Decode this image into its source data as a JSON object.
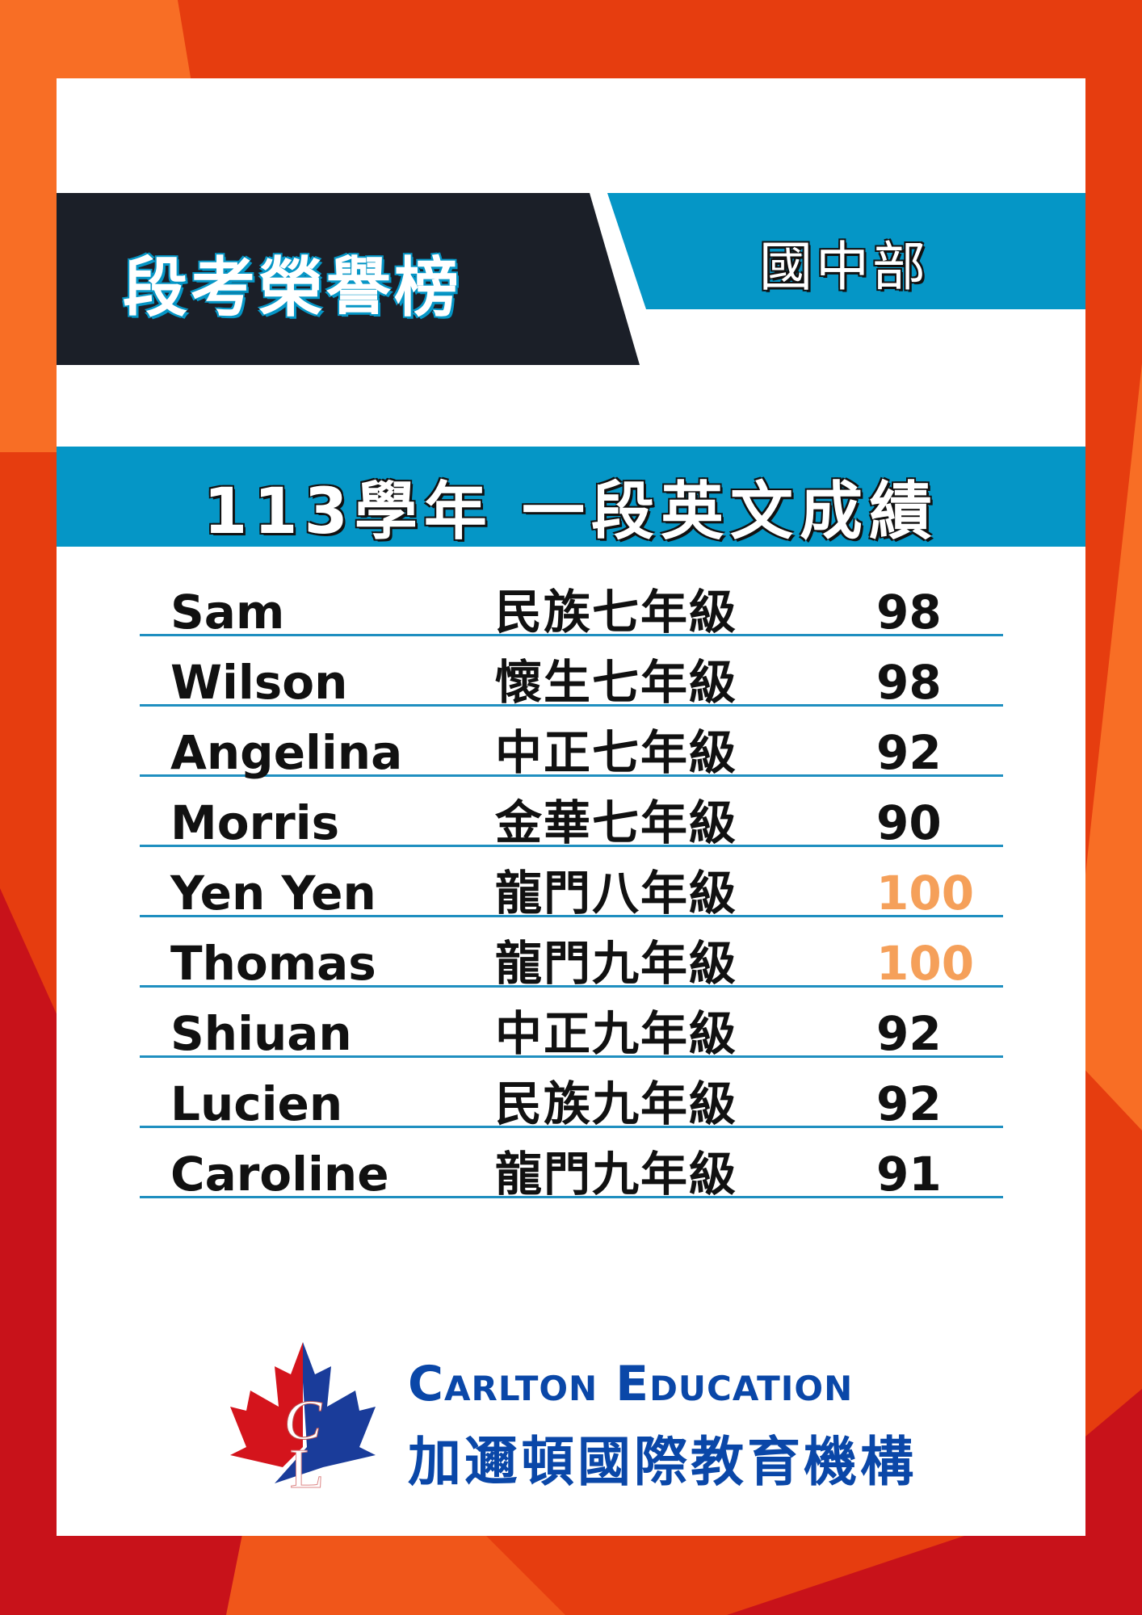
{
  "header": {
    "title": "段考榮譽榜",
    "department": "國中部"
  },
  "subtitle": "113學年 一段英文成績",
  "colors": {
    "accent_blue": "#0596c6",
    "dark": "#1b1f28",
    "perfect_score": "#f5a05a",
    "brand_blue": "#0a47a8"
  },
  "results": [
    {
      "name": "Sam",
      "school": "民族七年級",
      "score": "98"
    },
    {
      "name": "Wilson",
      "school": "懷生七年級",
      "score": "98"
    },
    {
      "name": "Angelina",
      "school": "中正七年級",
      "score": "92"
    },
    {
      "name": "Morris",
      "school": "金華七年級",
      "score": "90"
    },
    {
      "name": "Yen Yen",
      "school": "龍門八年級",
      "score": "100"
    },
    {
      "name": "Thomas",
      "school": "龍門九年級",
      "score": "100"
    },
    {
      "name": "Shiuan",
      "school": "中正九年級",
      "score": "92"
    },
    {
      "name": "Lucien",
      "school": "民族九年級",
      "score": "92"
    },
    {
      "name": "Caroline",
      "school": "龍門九年級",
      "score": "91"
    }
  ],
  "brand": {
    "name_en": "Carlton Education",
    "name_zh": "加邇頓國際教育機構",
    "logo_letters": "CL",
    "logo_icon": "maple-leaf-icon"
  }
}
